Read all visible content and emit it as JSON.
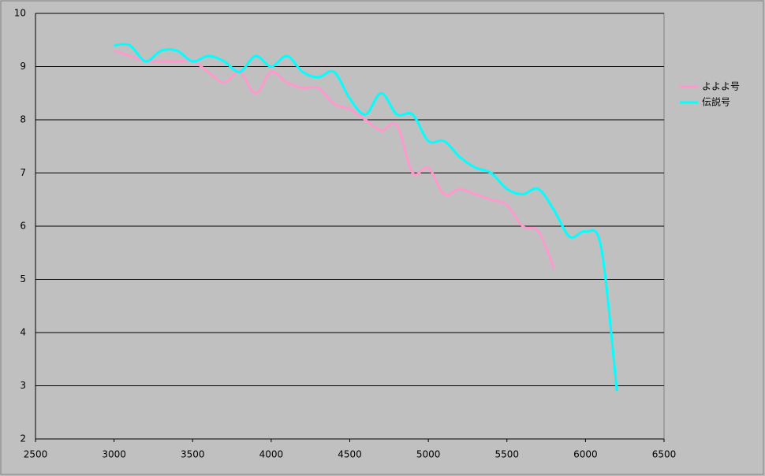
{
  "chart_data": {
    "type": "line",
    "x": [
      3000,
      3100,
      3200,
      3300,
      3400,
      3500,
      3600,
      3700,
      3800,
      3900,
      4000,
      4100,
      4200,
      4300,
      4400,
      4500,
      4600,
      4700,
      4800,
      4900,
      5000,
      5100,
      5200,
      5300,
      5400,
      5500,
      5600,
      5700,
      5800,
      5900,
      6000,
      6100,
      6200
    ],
    "series": [
      {
        "name": "よよよ号",
        "color": "#ff99cc",
        "values": [
          9.3,
          9.2,
          9.1,
          9.1,
          9.1,
          9.1,
          8.9,
          8.7,
          8.9,
          8.5,
          8.9,
          8.7,
          8.6,
          8.6,
          8.3,
          8.2,
          8.0,
          7.8,
          7.9,
          7.0,
          7.1,
          6.6,
          6.7,
          6.6,
          6.5,
          6.4,
          6.0,
          5.9,
          5.2,
          null,
          null,
          null,
          null
        ]
      },
      {
        "name": "伝説号",
        "color": "#00ffff",
        "values": [
          9.4,
          9.4,
          9.1,
          9.3,
          9.3,
          9.1,
          9.2,
          9.1,
          8.9,
          9.2,
          9.0,
          9.2,
          8.9,
          8.8,
          8.9,
          8.4,
          8.1,
          8.5,
          8.1,
          8.1,
          7.6,
          7.6,
          7.3,
          7.1,
          7.0,
          6.7,
          6.6,
          6.7,
          6.3,
          5.8,
          5.9,
          5.6,
          2.9
        ]
      }
    ],
    "xlim": [
      2500,
      6500
    ],
    "xticks": [
      2500,
      3000,
      3500,
      4000,
      4500,
      5000,
      5500,
      6000,
      6500
    ],
    "ylim": [
      2,
      10
    ],
    "yticks": [
      2,
      3,
      4,
      5,
      6,
      7,
      8,
      9,
      10
    ],
    "grid": true,
    "legend": "right",
    "smooth": true
  }
}
